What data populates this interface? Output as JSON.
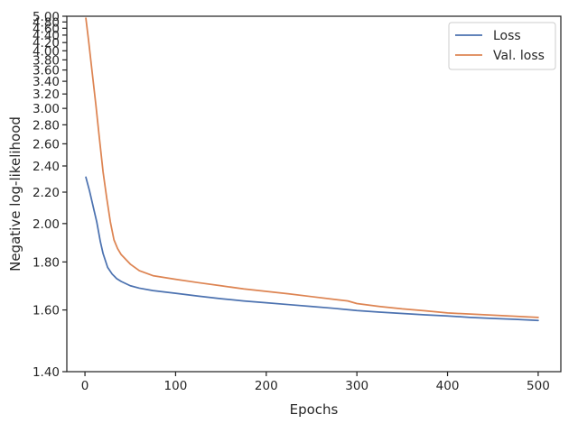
{
  "chart_data": {
    "type": "line",
    "xlabel": "Epochs",
    "ylabel": "Negative log-likelihood",
    "xlim": [
      -20,
      525
    ],
    "ylim": [
      1.4,
      5.0
    ],
    "y_scale": "reciprocal",
    "grid": false,
    "legend_position": "top-right",
    "xticks": [
      0,
      100,
      200,
      300,
      400,
      500
    ],
    "xtick_labels": [
      "0",
      "100",
      "200",
      "300",
      "400",
      "500"
    ],
    "yticks": [
      1.4,
      1.6,
      1.8,
      2.0,
      2.2,
      2.4,
      2.6,
      2.8,
      3.0,
      3.2,
      3.4,
      3.6,
      3.8,
      4.0,
      4.2,
      4.4,
      4.6,
      4.8,
      5.0
    ],
    "ytick_labels": [
      "1.40",
      "1.60",
      "1.80",
      "2.00",
      "2.20",
      "2.40",
      "2.60",
      "2.80",
      "3.00",
      "3.20",
      "3.40",
      "3.60",
      "3.80",
      "4.00",
      "4.20",
      "4.40",
      "4.60",
      "4.80",
      "5.00"
    ],
    "series": [
      {
        "name": "Loss",
        "color": "#4c72b0",
        "x": [
          1,
          5,
          10,
          13,
          17,
          20,
          25,
          30,
          35,
          40,
          50,
          60,
          75,
          100,
          125,
          150,
          175,
          200,
          225,
          250,
          275,
          300,
          325,
          350,
          375,
          400,
          425,
          450,
          475,
          500
        ],
        "y": [
          2.31,
          2.21,
          2.08,
          2.01,
          1.9,
          1.84,
          1.775,
          1.745,
          1.725,
          1.713,
          1.695,
          1.685,
          1.675,
          1.664,
          1.653,
          1.643,
          1.634,
          1.627,
          1.62,
          1.613,
          1.606,
          1.598,
          1.592,
          1.587,
          1.582,
          1.578,
          1.573,
          1.569,
          1.566,
          1.562
        ]
      },
      {
        "name": "Val. loss",
        "color": "#dd8452",
        "x": [
          1,
          4,
          8,
          12,
          16,
          20,
          24,
          28,
          32,
          36,
          40,
          50,
          60,
          75,
          100,
          125,
          150,
          175,
          200,
          225,
          250,
          275,
          290,
          300,
          325,
          350,
          375,
          400,
          425,
          450,
          475,
          500
        ],
        "y": [
          4.93,
          4.25,
          3.55,
          3.05,
          2.65,
          2.35,
          2.16,
          2.01,
          1.91,
          1.865,
          1.835,
          1.79,
          1.76,
          1.738,
          1.722,
          1.708,
          1.695,
          1.682,
          1.672,
          1.662,
          1.651,
          1.64,
          1.634,
          1.624,
          1.613,
          1.604,
          1.597,
          1.589,
          1.585,
          1.581,
          1.577,
          1.573
        ]
      }
    ]
  }
}
